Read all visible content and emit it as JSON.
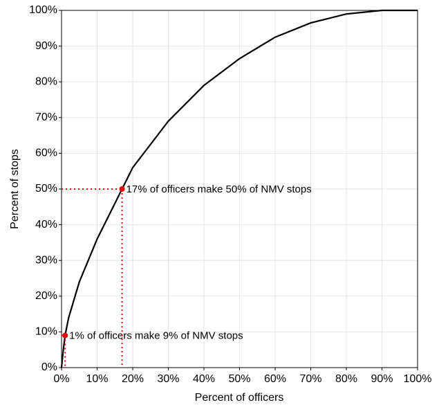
{
  "chart_data": {
    "type": "line",
    "xlabel": "Percent of officers",
    "ylabel": "Percent of stops",
    "x": [
      0,
      0.5,
      1,
      2,
      5,
      10,
      17,
      20,
      30,
      40,
      50,
      60,
      70,
      80,
      90,
      100
    ],
    "series": [
      {
        "color": "#000000",
        "values": [
          0,
          5,
          9,
          14,
          24,
          36,
          50,
          56,
          69,
          79,
          86.5,
          92.5,
          96.5,
          99,
          100,
          100
        ]
      }
    ],
    "points": {
      "x": [
        1,
        17
      ],
      "y": [
        9,
        50
      ],
      "color": "#e8000b",
      "labels": [
        "1% of officers make 9% of NMV stops",
        "17% of officers make 50% of NMV stops"
      ]
    },
    "xlim": [
      0,
      100
    ],
    "ylim": [
      0,
      100
    ],
    "xticks": [
      {
        "value": 0,
        "label": "0%"
      },
      {
        "value": 10,
        "label": "10%"
      },
      {
        "value": 20,
        "label": "20%"
      },
      {
        "value": 30,
        "label": "30%"
      },
      {
        "value": 40,
        "label": "40%"
      },
      {
        "value": 50,
        "label": "50%"
      },
      {
        "value": 60,
        "label": "60%"
      },
      {
        "value": 70,
        "label": "70%"
      },
      {
        "value": 80,
        "label": "80%"
      },
      {
        "value": 90,
        "label": "90%"
      },
      {
        "value": 100,
        "label": "100%"
      }
    ],
    "yticks": [
      {
        "value": 0,
        "label": "0%"
      },
      {
        "value": 10,
        "label": "10%"
      },
      {
        "value": 20,
        "label": "20%"
      },
      {
        "value": 30,
        "label": "30%"
      },
      {
        "value": 40,
        "label": "40%"
      },
      {
        "value": 50,
        "label": "50%"
      },
      {
        "value": 60,
        "label": "60%"
      },
      {
        "value": 70,
        "label": "70%"
      },
      {
        "value": 80,
        "label": "80%"
      },
      {
        "value": 90,
        "label": "90%"
      },
      {
        "value": 100,
        "label": "100%"
      }
    ],
    "grid": true
  }
}
